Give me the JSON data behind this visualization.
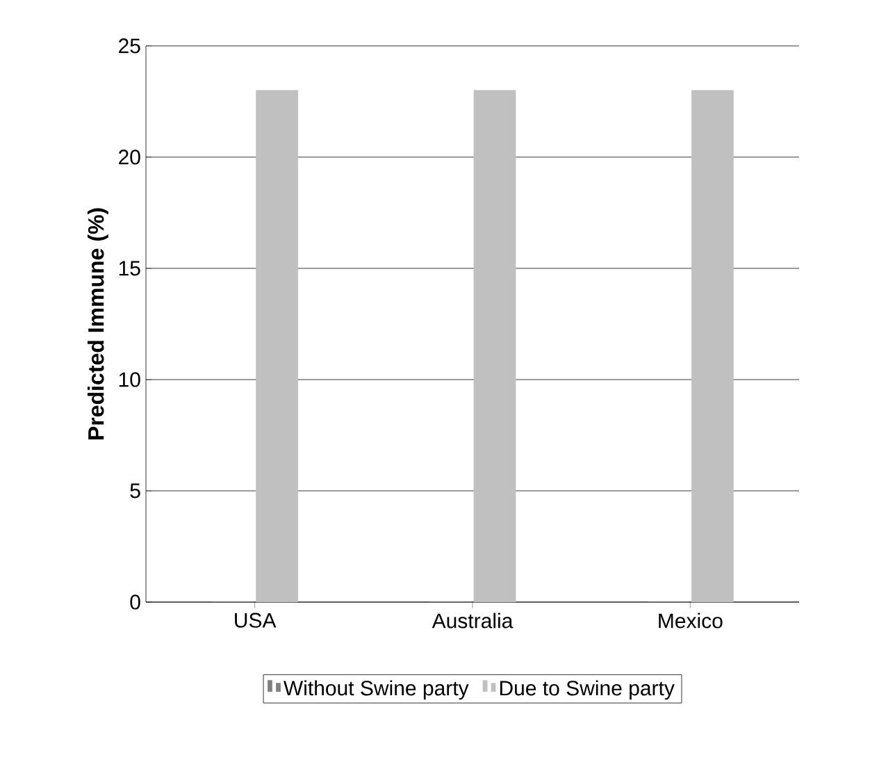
{
  "chart_data": {
    "type": "bar",
    "ylabel": "Predicted  Immune (%)",
    "categories": [
      "USA",
      "Australia",
      "Mexico"
    ],
    "series": [
      {
        "name": "Without Swine party",
        "color": "#808080",
        "values": [
          0,
          0,
          0
        ]
      },
      {
        "name": "Due to Swine party",
        "color": "#c0c0c0",
        "values": [
          23,
          23,
          23
        ]
      }
    ],
    "ylim": [
      0,
      25
    ],
    "yticks": [
      0,
      5,
      10,
      15,
      20,
      25
    ],
    "grid": "y",
    "legend": "bottom"
  }
}
